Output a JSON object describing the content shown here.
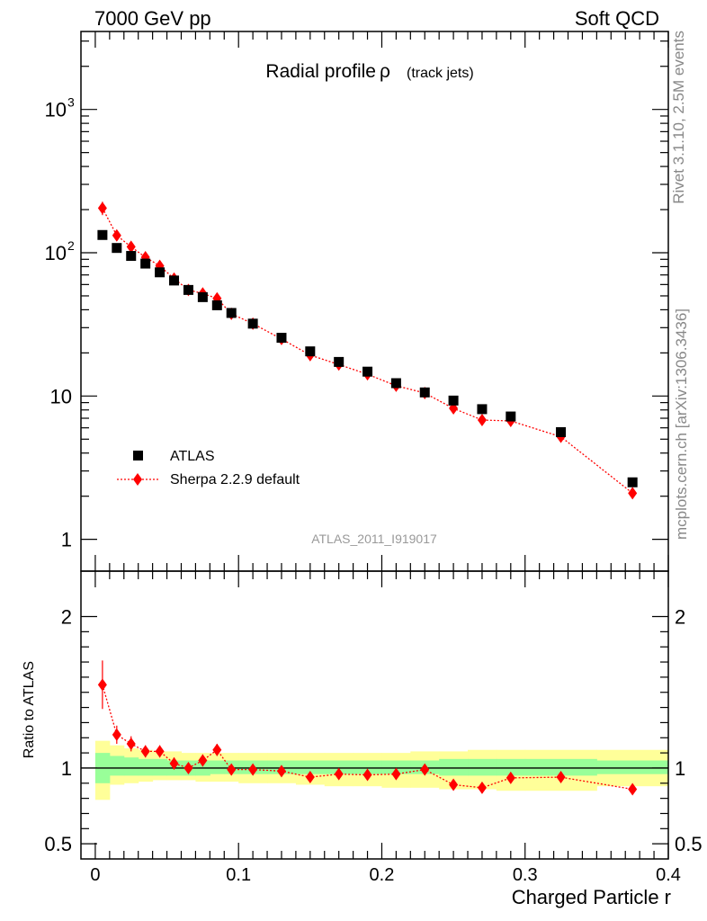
{
  "header": {
    "left": "7000 GeV pp",
    "right": "Soft QCD"
  },
  "side_labels": {
    "rivet": "Rivet 3.1.10,  2.5M events",
    "mcplots": "mcplots.cern.ch [arXiv:1306.3436]"
  },
  "analysis_id": "ATLAS_2011_I919017",
  "colors": {
    "data": "#000000",
    "mc": "#ff0000",
    "band_inner": "#99ff99",
    "band_outer": "#ffff99"
  },
  "chart_data": [
    {
      "type": "scatter",
      "title": "Radial profile",
      "title_symbol": "ρ",
      "title_suffix": "(track jets)",
      "xlabel": "Charged Particle r",
      "ylabel": "",
      "yscale": "log",
      "xlim": [
        -0.01,
        0.4
      ],
      "ylim": [
        0.6,
        3500
      ],
      "y_ticks": [
        {
          "value": 1,
          "label": "1"
        },
        {
          "value": 10,
          "label": "10"
        },
        {
          "value": 100,
          "label": "10",
          "sup": "2"
        },
        {
          "value": 1000,
          "label": "10",
          "sup": "3"
        }
      ],
      "legend_position": "left-lower",
      "series": [
        {
          "name": "ATLAS",
          "marker": "square",
          "x": [
            0.005,
            0.015,
            0.025,
            0.035,
            0.045,
            0.055,
            0.065,
            0.075,
            0.085,
            0.095,
            0.11,
            0.13,
            0.15,
            0.17,
            0.19,
            0.21,
            0.23,
            0.25,
            0.27,
            0.29,
            0.325,
            0.375
          ],
          "y": [
            133,
            108,
            95,
            84,
            73,
            64,
            55,
            49,
            43,
            38,
            32,
            25.5,
            20.5,
            17.3,
            14.8,
            12.3,
            10.6,
            9.3,
            8.1,
            7.2,
            5.6,
            2.5
          ]
        },
        {
          "name": "Sherpa 2.2.9 default",
          "marker": "diamond",
          "line": "dotted",
          "x": [
            0.005,
            0.015,
            0.025,
            0.035,
            0.045,
            0.055,
            0.065,
            0.075,
            0.085,
            0.095,
            0.11,
            0.13,
            0.15,
            0.17,
            0.19,
            0.21,
            0.23,
            0.25,
            0.27,
            0.29,
            0.325,
            0.375
          ],
          "y": [
            205,
            132,
            110,
            93,
            81,
            66,
            55,
            52,
            48,
            37.5,
            32,
            25,
            19.3,
            16.6,
            14.2,
            11.8,
            10.5,
            8.2,
            6.8,
            6.7,
            5.2,
            2.1
          ],
          "yerr": [
            22,
            9,
            7,
            5,
            4.5,
            3.5,
            3,
            3,
            3,
            2,
            1.6,
            1.2,
            1,
            0.8,
            0.7,
            0.6,
            0.5,
            0.4,
            0.35,
            0.35,
            0.25,
            0.12
          ]
        }
      ]
    },
    {
      "type": "scatter",
      "xlabel": "Charged Particle r",
      "ylabel": "Ratio to ATLAS",
      "xlim": [
        -0.01,
        0.4
      ],
      "ylim": [
        0.4,
        2.3
      ],
      "y_ticks": [
        {
          "value": 0.5,
          "label": "0.5"
        },
        {
          "value": 1,
          "label": "1"
        },
        {
          "value": 2,
          "label": "2"
        }
      ],
      "x_ticks": [
        {
          "value": 0,
          "label": "0"
        },
        {
          "value": 0.1,
          "label": "0.1"
        },
        {
          "value": 0.2,
          "label": "0.2"
        },
        {
          "value": 0.3,
          "label": "0.3"
        },
        {
          "value": 0.4,
          "label": "0.4"
        }
      ],
      "reference_line": 1,
      "bands": {
        "edges": [
          0.0,
          0.01,
          0.02,
          0.03,
          0.04,
          0.05,
          0.06,
          0.07,
          0.08,
          0.09,
          0.1,
          0.12,
          0.14,
          0.16,
          0.18,
          0.2,
          0.22,
          0.24,
          0.26,
          0.28,
          0.3,
          0.35,
          0.4
        ],
        "inner_low": [
          0.9,
          0.95,
          0.95,
          0.95,
          0.95,
          0.95,
          0.95,
          0.95,
          0.96,
          0.96,
          0.96,
          0.96,
          0.96,
          0.96,
          0.96,
          0.96,
          0.96,
          0.95,
          0.95,
          0.95,
          0.95,
          0.96
        ],
        "inner_high": [
          1.1,
          1.08,
          1.07,
          1.06,
          1.06,
          1.05,
          1.05,
          1.05,
          1.05,
          1.05,
          1.05,
          1.05,
          1.05,
          1.05,
          1.05,
          1.05,
          1.05,
          1.06,
          1.06,
          1.06,
          1.06,
          1.05
        ],
        "outer_low": [
          0.79,
          0.89,
          0.9,
          0.91,
          0.92,
          0.92,
          0.92,
          0.91,
          0.91,
          0.91,
          0.9,
          0.9,
          0.89,
          0.88,
          0.88,
          0.87,
          0.87,
          0.86,
          0.86,
          0.85,
          0.85,
          0.88
        ],
        "outer_high": [
          1.18,
          1.15,
          1.13,
          1.12,
          1.11,
          1.11,
          1.1,
          1.1,
          1.1,
          1.1,
          1.1,
          1.1,
          1.1,
          1.1,
          1.1,
          1.1,
          1.11,
          1.11,
          1.12,
          1.12,
          1.12,
          1.12
        ]
      },
      "series": [
        {
          "name": "Sherpa 2.2.9 default",
          "marker": "diamond",
          "line": "dotted",
          "x": [
            0.005,
            0.015,
            0.025,
            0.035,
            0.045,
            0.055,
            0.065,
            0.075,
            0.085,
            0.095,
            0.11,
            0.13,
            0.15,
            0.17,
            0.19,
            0.21,
            0.23,
            0.25,
            0.27,
            0.29,
            0.325,
            0.375
          ],
          "y": [
            1.55,
            1.22,
            1.16,
            1.11,
            1.11,
            1.03,
            1.0,
            1.05,
            1.12,
            0.99,
            0.99,
            0.98,
            0.94,
            0.96,
            0.955,
            0.96,
            0.99,
            0.89,
            0.87,
            0.935,
            0.94,
            0.86
          ],
          "yerr": [
            0.16,
            0.06,
            0.05,
            0.04,
            0.04,
            0.04,
            0.03,
            0.04,
            0.04,
            0.03,
            0.03,
            0.03,
            0.03,
            0.03,
            0.03,
            0.03,
            0.03,
            0.03,
            0.03,
            0.03,
            0.03,
            0.03
          ]
        }
      ]
    }
  ]
}
